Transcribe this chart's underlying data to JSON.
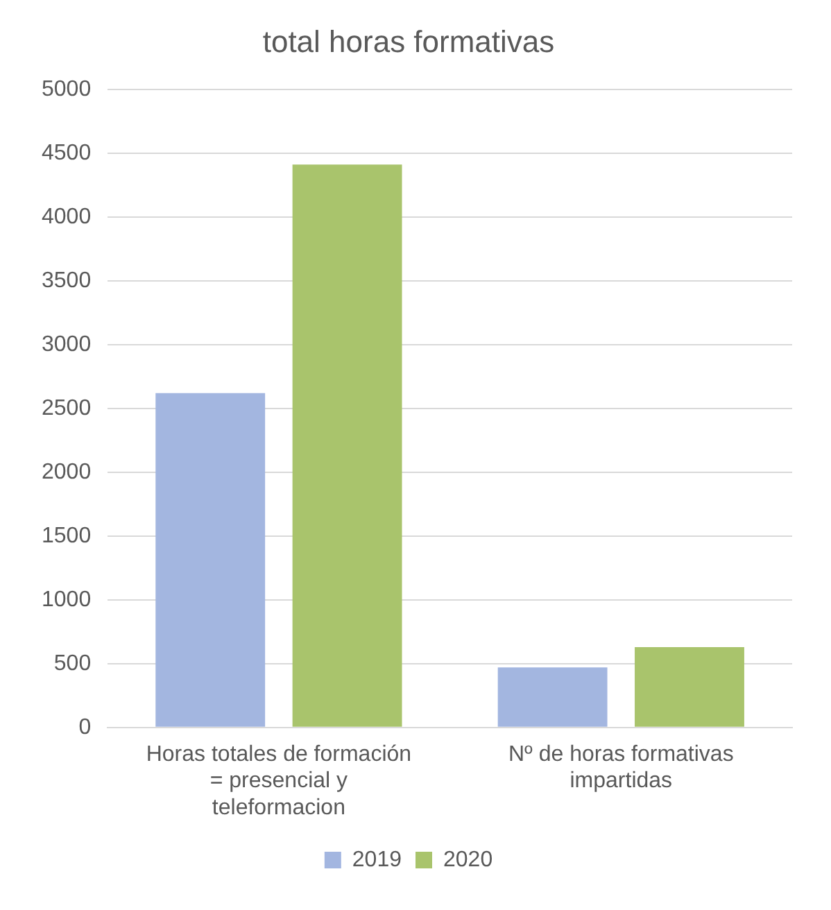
{
  "chart_data": {
    "type": "bar",
    "title": "total horas formativas",
    "categories": [
      "Horas totales de formación = presencial y teleformacion",
      "Nº de horas formativas impartidas"
    ],
    "series": [
      {
        "name": "2019",
        "color": "#a3b6e0",
        "values": [
          2620,
          470
        ]
      },
      {
        "name": "2020",
        "color": "#a9c46c",
        "values": [
          4410,
          630
        ]
      }
    ],
    "ylim": [
      0,
      5000
    ],
    "yticks": [
      0,
      500,
      1000,
      1500,
      2000,
      2500,
      3000,
      3500,
      4000,
      4500,
      5000
    ],
    "grid": "y",
    "legend": "bottom"
  }
}
